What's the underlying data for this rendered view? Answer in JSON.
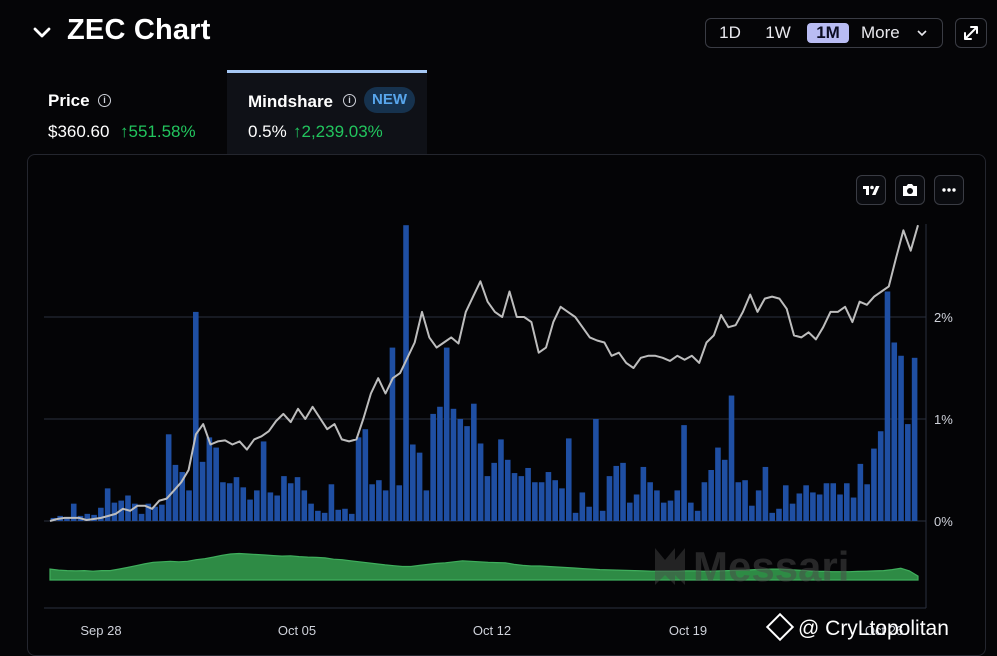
{
  "header": {
    "title": "ZEC Chart",
    "ranges": [
      "1D",
      "1W",
      "1M",
      "More"
    ],
    "active_range": "1M"
  },
  "tabs": [
    {
      "label": "Price",
      "value": "$360.60",
      "change": "551.58%"
    },
    {
      "label": "Mindshare",
      "badge": "NEW",
      "value": "0.5%",
      "change": "2,239.03%"
    }
  ],
  "watermark": {
    "logo": "Messari",
    "credit": "@ CryLtopolitan"
  },
  "colors": {
    "bars": "#1f4fa3",
    "price_line": "#bdbdbd",
    "volume_area": "#2e8b45",
    "positive": "#22c55e"
  },
  "chart_data": {
    "type": "bar",
    "x_ticks": [
      "Sep 28",
      "Oct 05",
      "Oct 12",
      "Oct 19",
      "Oct 26"
    ],
    "y_ticks": [
      "0%",
      "1%",
      "2%"
    ],
    "ylim": [
      0,
      2.9
    ],
    "grid": true,
    "series": [
      {
        "name": "Mindshare",
        "kind": "bar",
        "values": [
          0.03,
          0.05,
          0.04,
          0.17,
          0.05,
          0.07,
          0.06,
          0.13,
          0.32,
          0.18,
          0.2,
          0.25,
          0.17,
          0.07,
          0.17,
          0.14,
          0.16,
          0.85,
          0.55,
          0.48,
          0.3,
          2.05,
          0.58,
          0.82,
          0.72,
          0.38,
          0.37,
          0.43,
          0.33,
          0.21,
          0.3,
          0.78,
          0.28,
          0.25,
          0.44,
          0.37,
          0.43,
          0.3,
          0.17,
          0.1,
          0.08,
          0.36,
          0.11,
          0.12,
          0.07,
          0.82,
          0.9,
          0.36,
          0.4,
          0.3,
          1.7,
          0.35,
          2.9,
          0.75,
          0.67,
          0.3,
          1.05,
          1.12,
          1.7,
          1.1,
          1.0,
          0.93,
          1.15,
          0.76,
          0.44,
          0.57,
          0.8,
          0.6,
          0.47,
          0.44,
          0.52,
          0.38,
          0.38,
          0.48,
          0.4,
          0.32,
          0.81,
          0.08,
          0.28,
          0.14,
          1.0,
          0.1,
          0.44,
          0.54,
          0.57,
          0.18,
          0.26,
          0.53,
          0.38,
          0.3,
          0.18,
          0.2,
          0.3,
          0.94,
          0.18,
          0.1,
          0.38,
          0.5,
          0.72,
          0.6,
          1.23,
          0.38,
          0.4,
          0.15,
          0.3,
          0.53,
          0.08,
          0.12,
          0.35,
          0.17,
          0.27,
          0.35,
          0.28,
          0.26,
          0.37,
          0.37,
          0.26,
          0.37,
          0.23,
          0.56,
          0.36,
          0.71,
          0.88,
          2.25,
          1.75,
          1.62,
          0.95,
          1.6
        ]
      },
      {
        "name": "Price",
        "kind": "line",
        "values": [
          0.0,
          0.02,
          0.03,
          0.03,
          0.03,
          0.01,
          0.02,
          0.03,
          0.05,
          0.07,
          0.12,
          0.1,
          0.15,
          0.15,
          0.12,
          0.2,
          0.22,
          0.3,
          0.38,
          0.5,
          0.85,
          0.95,
          0.75,
          0.78,
          0.79,
          0.75,
          0.78,
          0.7,
          0.8,
          0.83,
          0.88,
          0.98,
          1.05,
          0.97,
          1.1,
          1.0,
          1.12,
          1.01,
          0.9,
          0.95,
          0.8,
          0.78,
          0.8,
          1.01,
          1.25,
          1.4,
          1.25,
          1.4,
          1.45,
          1.6,
          1.75,
          2.05,
          1.8,
          1.7,
          1.75,
          1.8,
          1.74,
          2.05,
          2.2,
          2.35,
          2.15,
          2.05,
          2.0,
          2.25,
          2.0,
          2.0,
          1.95,
          1.65,
          1.7,
          1.95,
          2.1,
          2.05,
          2.0,
          1.9,
          1.8,
          1.77,
          1.75,
          1.62,
          1.65,
          1.55,
          1.5,
          1.6,
          1.62,
          1.62,
          1.6,
          1.57,
          1.62,
          1.58,
          1.62,
          1.55,
          1.75,
          1.82,
          2.02,
          1.9,
          1.92,
          2.05,
          2.22,
          2.05,
          2.18,
          2.2,
          2.18,
          2.08,
          1.82,
          1.8,
          1.85,
          1.78,
          1.9,
          2.05,
          2.05,
          2.1,
          1.95,
          2.15,
          2.12,
          2.2,
          2.25,
          2.3,
          2.58,
          2.85,
          2.65,
          2.9
        ]
      },
      {
        "name": "Volume",
        "kind": "area",
        "values": [
          0.42,
          0.38,
          0.36,
          0.35,
          0.36,
          0.34,
          0.36,
          0.36,
          0.42,
          0.48,
          0.55,
          0.62,
          0.68,
          0.7,
          0.72,
          0.7,
          0.72,
          0.78,
          0.82,
          0.88,
          0.95,
          1.0,
          1.02,
          1.0,
          0.98,
          0.96,
          0.94,
          0.92,
          0.93,
          0.9,
          0.88,
          0.87,
          0.85,
          0.8,
          0.78,
          0.74,
          0.7,
          0.66,
          0.62,
          0.58,
          0.55,
          0.52,
          0.52,
          0.56,
          0.6,
          0.64,
          0.66,
          0.7,
          0.74,
          0.72,
          0.7,
          0.68,
          0.67,
          0.66,
          0.6,
          0.56,
          0.54,
          0.54,
          0.52,
          0.5,
          0.48,
          0.46,
          0.44,
          0.42,
          0.4,
          0.39,
          0.38,
          0.37,
          0.36,
          0.35,
          0.34,
          0.34,
          0.34,
          0.34,
          0.35,
          0.35,
          0.34,
          0.34,
          0.35,
          0.36,
          0.37,
          0.38,
          0.4,
          0.41,
          0.42,
          0.42,
          0.4,
          0.38,
          0.36,
          0.34,
          0.33,
          0.32,
          0.32,
          0.32,
          0.33,
          0.34,
          0.35,
          0.36,
          0.4,
          0.45,
          0.35,
          0.15
        ]
      }
    ]
  }
}
